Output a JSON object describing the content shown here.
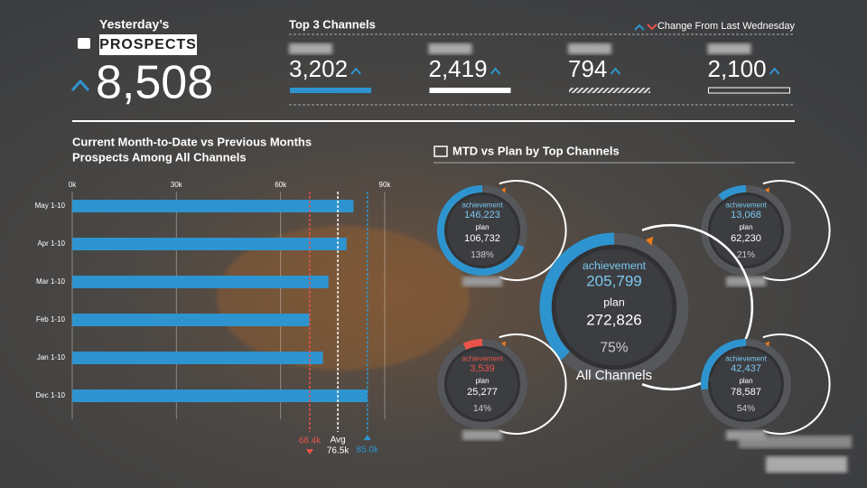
{
  "header": {
    "subtitle": "Yesterday’s",
    "title": "PROSPECTS",
    "value": "8,508"
  },
  "channels": {
    "title": "Top 3 Channels",
    "legend": "Change From Last Wednesday",
    "items": [
      {
        "value": "3,202"
      },
      {
        "value": "2,419"
      },
      {
        "value": "794"
      },
      {
        "value": "2,100"
      }
    ]
  },
  "chart_data": {
    "type": "bar",
    "orientation": "horizontal",
    "title": [
      "Current Month-to-Date vs Previous Months",
      "Prospects Among All Channels"
    ],
    "categories": [
      "May 1-10",
      "Apr 1-10",
      "Mar 1-10",
      "Feb 1-10",
      "Jan 1-10",
      "Dec 1-10"
    ],
    "values": [
      81,
      79,
      73.8,
      68.3,
      72.2,
      85
    ],
    "color": "#2e94cf",
    "xlim": [
      0,
      90
    ],
    "xticks": [
      {
        "value": 0,
        "label": "0k"
      },
      {
        "value": 30,
        "label": "30k"
      },
      {
        "value": 60,
        "label": "60k"
      },
      {
        "value": 90,
        "label": "90k"
      }
    ],
    "grid": true,
    "reference_lines": [
      {
        "value": 68.4,
        "label": "68.4k",
        "color": "#e8534a"
      },
      {
        "name": "Avg",
        "value": 76.5,
        "label": "76.5k",
        "color": "#ffffff"
      },
      {
        "value": 85.0,
        "label": "85.0k",
        "color": "#2e94cf"
      }
    ]
  },
  "gauges": {
    "title": "MTD vs Plan by Top Channels",
    "achievement_label": "achievement",
    "plan_label": "plan",
    "items": [
      {
        "achievement": "146,223",
        "plan": "106,732",
        "value": 138,
        "value_label": "138%",
        "color": "#2e94cf"
      },
      {
        "achievement": "13,068",
        "plan": "62,230",
        "value": 21,
        "value_label": "21%",
        "color": "#2e94cf"
      },
      {
        "achievement": "205,799",
        "plan": "272,826",
        "value": 75,
        "value_label": "75%",
        "color": "#2e94cf",
        "name": "All Channels"
      },
      {
        "achievement": "3,539",
        "plan": "25,277",
        "value": 14,
        "value_label": "14%",
        "color": "#e8534a"
      },
      {
        "achievement": "42,437",
        "plan": "78,587",
        "value": 54,
        "value_label": "54%",
        "color": "#2e94cf"
      }
    ]
  }
}
